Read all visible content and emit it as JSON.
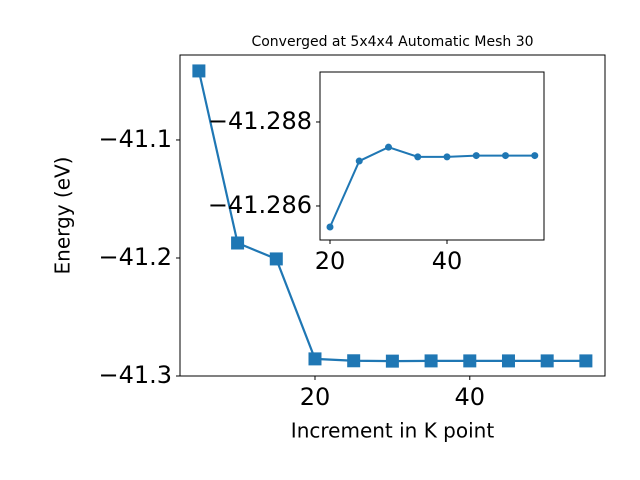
{
  "chart_data": [
    {
      "type": "line",
      "title": "Converged at 5x4x4 Automatic Mesh 30",
      "xlabel": "Increment in K point",
      "ylabel": "Energy (eV)",
      "x": [
        5,
        10,
        15,
        20,
        25,
        30,
        35,
        40,
        45,
        50,
        55
      ],
      "series": [
        {
          "color": "#1f77b4",
          "marker": "square",
          "values": [
            -41.0415,
            -41.1873,
            -41.2008,
            -41.2855,
            -41.2871,
            -41.2874,
            -41.2872,
            -41.2872,
            -41.2872,
            -41.2872,
            -41.2872
          ]
        }
      ],
      "xlim": [
        2.56,
        57.47
      ],
      "ylim": [
        -41.3,
        -41.028
      ],
      "xticks": [
        20,
        40
      ],
      "yticks": [
        {
          "value": -41.1,
          "label": "−41.1"
        },
        {
          "value": -41.2,
          "label": "−41.2"
        },
        {
          "value": -41.3,
          "label": "−41.3"
        }
      ]
    },
    {
      "type": "line",
      "x": [
        20,
        25,
        30,
        35,
        40,
        45,
        50,
        55
      ],
      "series": [
        {
          "color": "#1f77b4",
          "marker": "circle",
          "values": [
            -41.2855,
            -41.28707,
            -41.2874,
            -41.28717,
            -41.28717,
            -41.2872,
            -41.2872,
            -41.2872
          ]
        }
      ],
      "xlim": [
        18.29,
        56.58
      ],
      "ylim": [
        -41.28519,
        -41.28919
      ],
      "xticks": [
        20,
        40
      ],
      "yticks": [
        {
          "value": -41.288,
          "label": "−41.288"
        },
        {
          "value": -41.286,
          "label": "−41.286"
        }
      ]
    }
  ]
}
